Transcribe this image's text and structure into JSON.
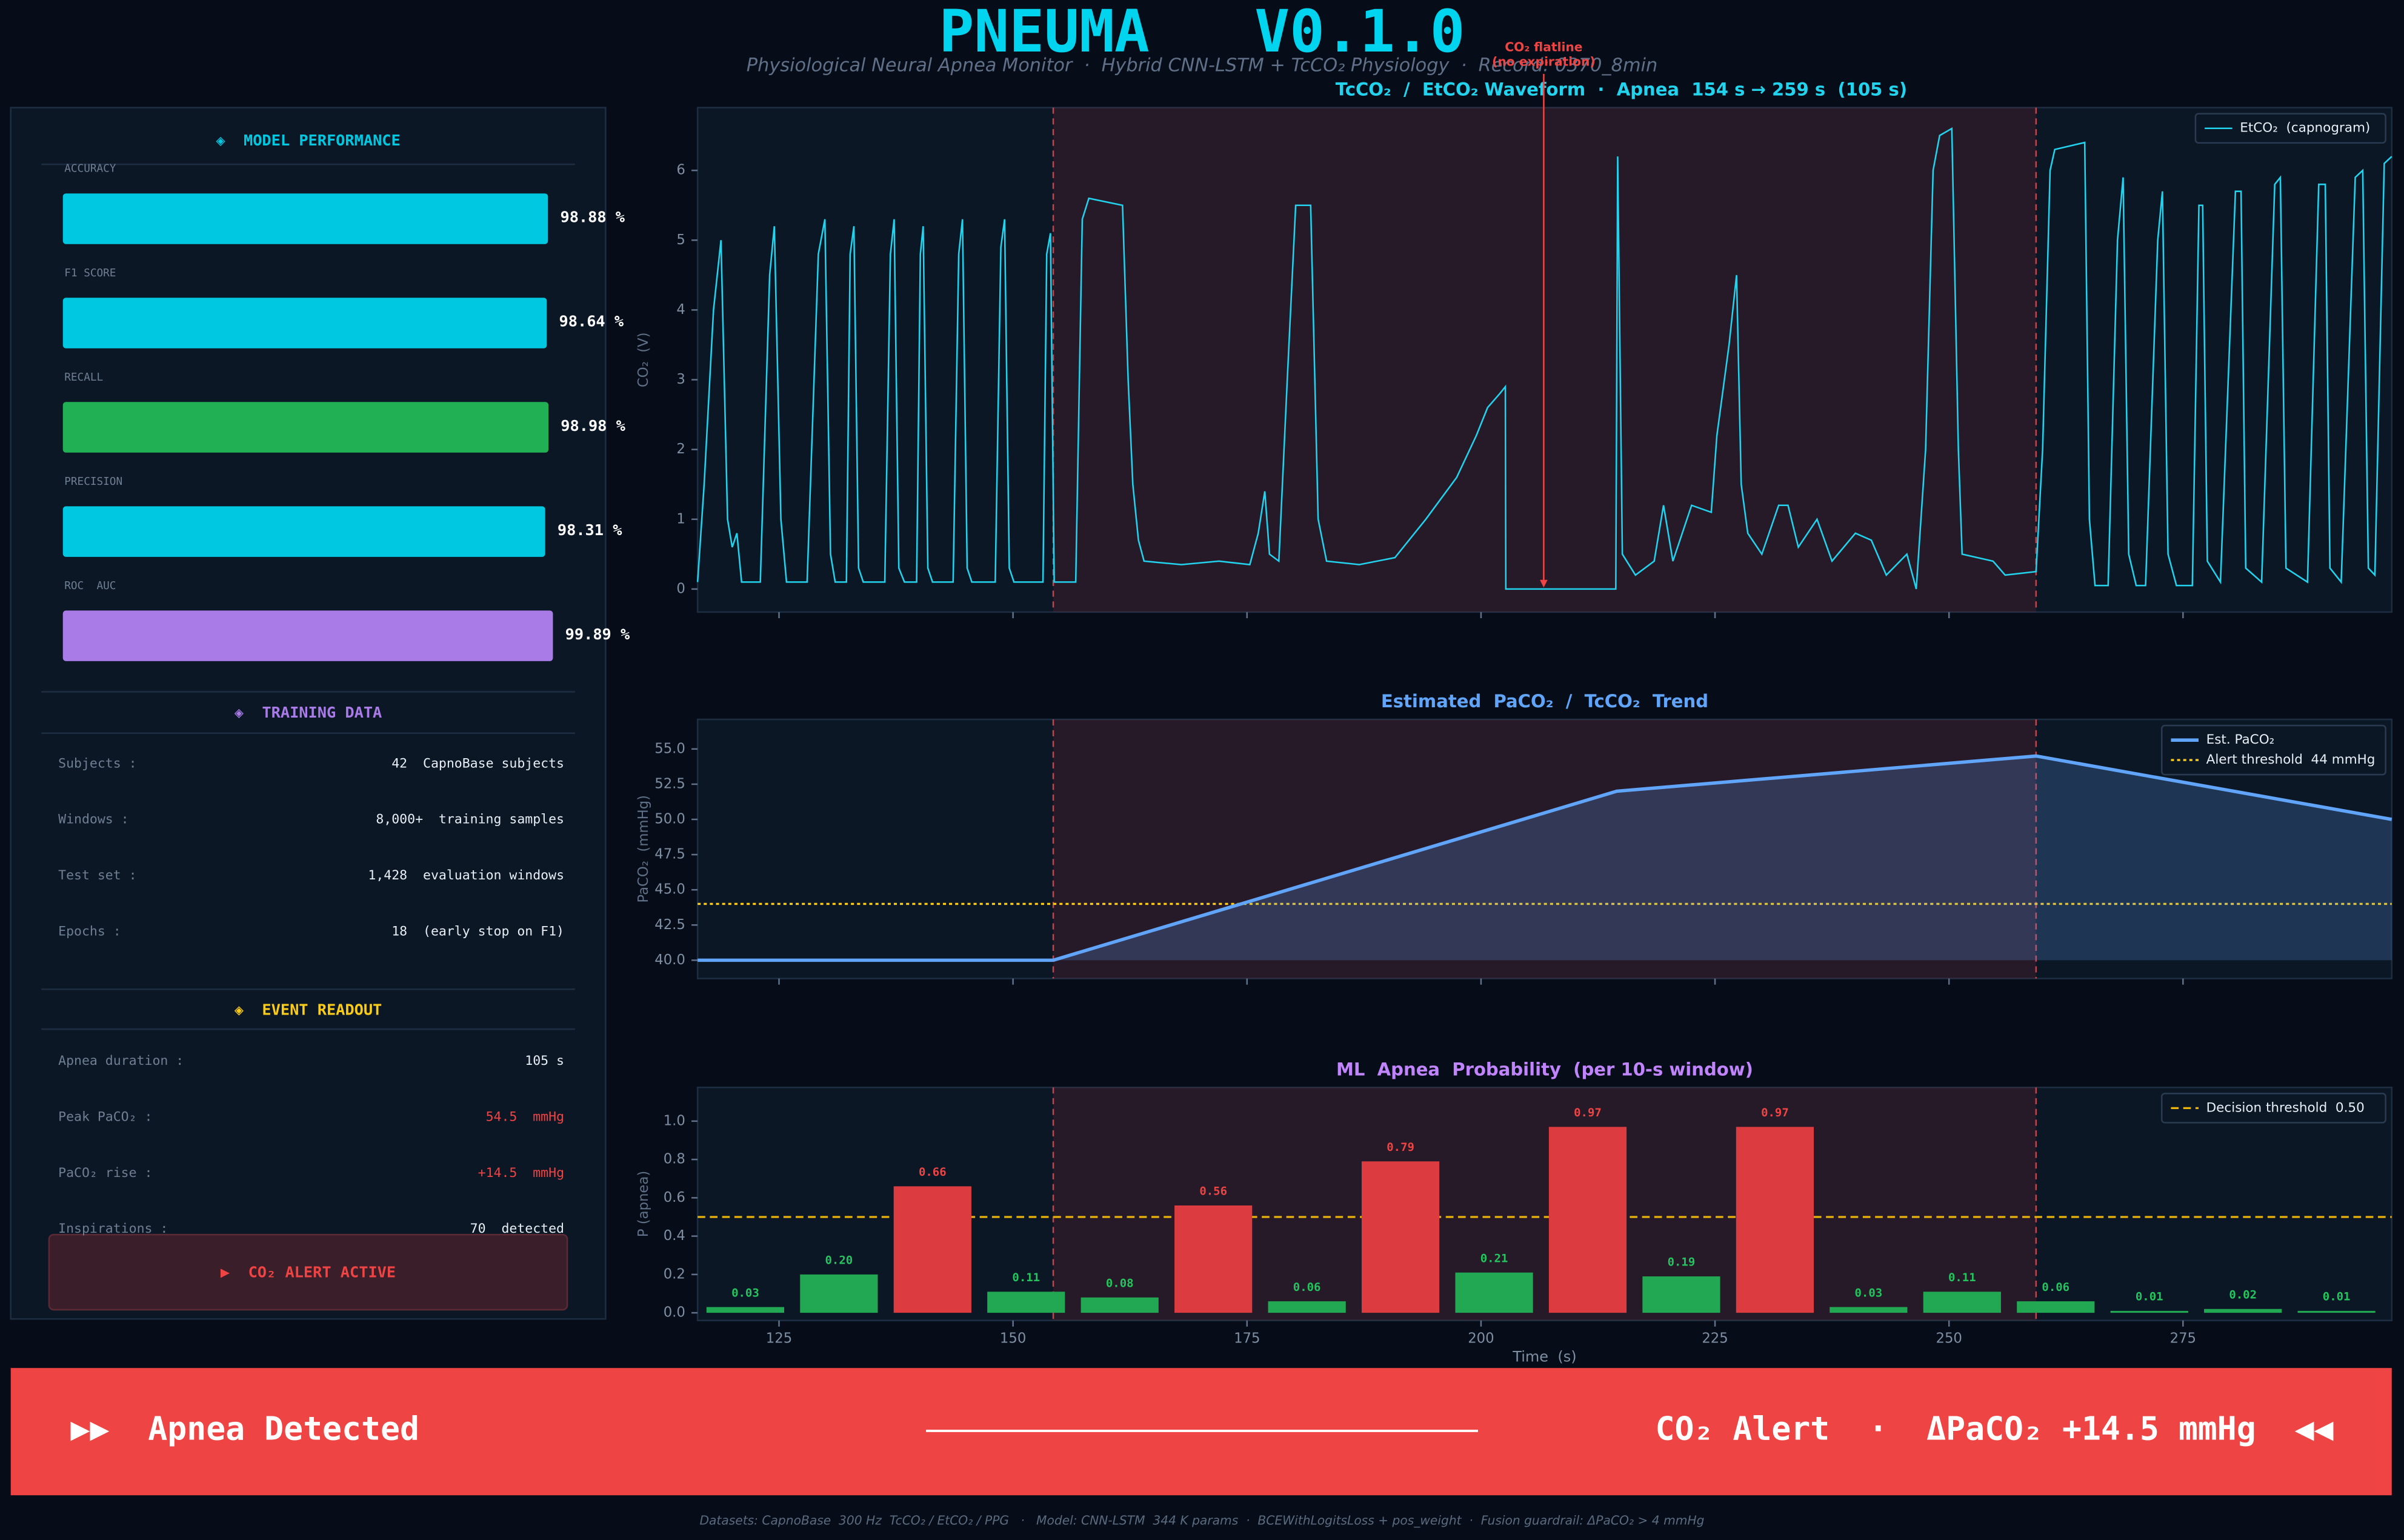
{
  "header": {
    "title": "PNEUMA   V0.1.0",
    "subtitle": "Physiological Neural Apnea Monitor  ·  Hybrid CNN-LSTM + TcCO₂ Physiology  ·  Record: 0370_8min"
  },
  "performance": {
    "title": "◈  MODEL PERFORMANCE",
    "metrics": [
      {
        "label": "ACCURACY",
        "value": 98.88,
        "value_label": "98.88 %",
        "color": "#00c8e0"
      },
      {
        "label": "F1 SCORE",
        "value": 98.64,
        "value_label": "98.64 %",
        "color": "#00c8e0"
      },
      {
        "label": "RECALL",
        "value": 98.98,
        "value_label": "98.98 %",
        "color": "#22b055"
      },
      {
        "label": "PRECISION",
        "value": 98.31,
        "value_label": "98.31 %",
        "color": "#00c8e0"
      },
      {
        "label": "ROC  AUC",
        "value": 99.89,
        "value_label": "99.89 %",
        "color": "#a87be6"
      }
    ]
  },
  "training": {
    "title": "◈  TRAINING DATA",
    "rows": [
      {
        "label": "Subjects :",
        "value": "42  CapnoBase subjects"
      },
      {
        "label": "Windows :",
        "value": "8,000+  training samples"
      },
      {
        "label": "Test set :",
        "value": "1,428  evaluation windows"
      },
      {
        "label": "Epochs :",
        "value": "18  (early stop on F1)"
      }
    ]
  },
  "event": {
    "title": "◈  EVENT READOUT",
    "rows": [
      {
        "label": "Apnea duration :",
        "value": "105 s",
        "color": "#e8eef5"
      },
      {
        "label": "Peak PaCO₂ :",
        "value": "54.5  mmHg",
        "color": "#ef4444"
      },
      {
        "label": "PaCO₂ rise :",
        "value": "+14.5  mmHg",
        "color": "#ef4444"
      },
      {
        "label": "Inspirations :",
        "value": "70  detected",
        "color": "#e8eef5"
      }
    ]
  },
  "alert": "▶  CO₂ ALERT ACTIVE",
  "banner": {
    "left": "▶▶  Apnea Detected",
    "right": "CO₂ Alert  ·  ΔPaCO₂ +14.5 mmHg  ◀◀"
  },
  "footer": "Datasets: CapnoBase  300 Hz  TcCO₂ / EtCO₂ / PPG   ·   Model: CNN-LSTM  344 K params  ·  BCEWithLogitsLoss + pos_weight  ·  Fusion guardrail: ΔPaCO₂ > 4 mmHg",
  "chart_data": [
    {
      "type": "line",
      "title": "TcCO₂  /  EtCO₂ Waveform  ·  Apnea  154 s → 259 s  (105 s)",
      "title_color": "#22d3ee",
      "ylabel": "CO₂  (V)",
      "x": [
        116.3,
        117,
        118,
        118.8,
        119.5,
        120,
        120.5,
        121,
        123,
        124,
        124.5,
        125.2,
        125.8,
        128,
        129.2,
        129.9,
        130.5,
        131,
        132.2,
        132.6,
        133,
        133.5,
        134,
        136.3,
        136.9,
        137.3,
        137.8,
        138.4,
        139.7,
        140.1,
        140.4,
        140.9,
        141.4,
        143.6,
        144.2,
        144.6,
        145.1,
        145.6,
        148.1,
        148.7,
        149.1,
        149.6,
        150.1,
        153.2,
        153.6,
        154,
        154.4,
        156.7,
        157.4,
        158.1,
        161.7,
        162.3,
        162.8,
        163.4,
        164,
        168,
        172,
        175.3,
        176.2,
        176.9,
        177.4,
        178.4,
        179.3,
        180.2,
        181.8,
        182.6,
        183.5,
        187,
        190.8,
        194.1,
        197.4,
        199.5,
        200.7,
        202,
        202.6,
        202.65,
        214.4,
        214.6,
        215.1,
        216.5,
        218.5,
        219.5,
        220.5,
        222.5,
        224.6,
        225.2,
        226.5,
        227.3,
        227.8,
        228.5,
        230,
        231.8,
        232.8,
        233.9,
        235.9,
        237.5,
        240,
        241.7,
        243.3,
        245.5,
        246.5,
        247.5,
        248.3,
        249,
        250.3,
        251,
        251.4,
        254.7,
        256,
        259.3,
        260,
        260.8,
        261.3,
        264.5,
        265,
        265.6,
        267,
        268,
        268.6,
        269.2,
        270,
        271,
        272.3,
        272.8,
        273.4,
        274.3,
        276,
        276.7,
        277.1,
        277.6,
        279,
        280.6,
        281.2,
        281.7,
        283.4,
        284.8,
        285.4,
        286,
        288.3,
        289.5,
        290.2,
        290.7,
        291.9,
        293.4,
        294.2,
        294.8,
        295.5,
        296.5,
        297.3
      ],
      "series": [
        {
          "name": "EtCO₂  (capnogram)",
          "color": "#22d3ee",
          "values": [
            0.1,
            1.5,
            4,
            5,
            1,
            0.6,
            0.8,
            0.1,
            0.1,
            4.5,
            5.2,
            1,
            0.1,
            0.1,
            4.8,
            5.3,
            0.5,
            0.1,
            0.1,
            4.8,
            5.2,
            0.3,
            0.1,
            0.1,
            4.8,
            5.3,
            0.3,
            0.1,
            0.1,
            4.8,
            5.2,
            0.3,
            0.1,
            0.1,
            4.8,
            5.3,
            0.3,
            0.1,
            0.1,
            4.9,
            5.3,
            0.3,
            0.1,
            0.1,
            4.8,
            5.1,
            0.1,
            0.1,
            5.3,
            5.6,
            5.5,
            3,
            1.5,
            0.7,
            0.4,
            0.35,
            0.4,
            0.35,
            0.8,
            1.4,
            0.5,
            0.4,
            3,
            5.5,
            5.5,
            1,
            0.4,
            0.35,
            0.45,
            1,
            1.6,
            2.2,
            2.6,
            2.8,
            2.9,
            0,
            0,
            6.2,
            0.5,
            0.2,
            0.4,
            1.2,
            0.4,
            1.2,
            1.1,
            2.2,
            3.5,
            4.5,
            1.5,
            0.8,
            0.5,
            1.2,
            1.2,
            0.6,
            1,
            0.4,
            0.8,
            0.7,
            0.2,
            0.5,
            0,
            2,
            6,
            6.5,
            6.6,
            2,
            0.5,
            0.4,
            0.2,
            0.25,
            2,
            6,
            6.3,
            6.4,
            1,
            0.05,
            0.05,
            5,
            5.9,
            0.5,
            0.05,
            0.05,
            5,
            5.7,
            0.5,
            0.05,
            0.05,
            5.5,
            5.5,
            0.4,
            0.1,
            5.7,
            5.7,
            0.3,
            0.1,
            5.8,
            5.9,
            0.3,
            0.1,
            5.8,
            5.8,
            0.3,
            0.1,
            5.9,
            6,
            0.3,
            0.2,
            6.1,
            6.2
          ]
        }
      ],
      "xlim": [
        116.3,
        297.3
      ],
      "ylim": [
        -0.33,
        6.9
      ],
      "xticks": [
        125,
        150,
        175,
        200,
        225,
        250,
        275
      ],
      "yticks": [
        0,
        1,
        2,
        3,
        4,
        5,
        6
      ],
      "highlight": [
        154.3,
        259.3
      ],
      "legend": "upper right",
      "annotations": [
        {
          "text": [
            "CO₂ flatline",
            "(no expiration)"
          ],
          "x": 206.7,
          "y": 0,
          "color": "#ef4444"
        }
      ]
    },
    {
      "type": "line",
      "title": "Estimated  PaCO₂  /  TcCO₂  Trend",
      "title_color": "#60a5fa",
      "ylabel": "PaCO₂  (mmHg)",
      "x": [
        116.3,
        154.3,
        214.5,
        259.3,
        297.3
      ],
      "series": [
        {
          "name": "Est. PaCO₂",
          "color": "#60a5fa",
          "values": [
            40,
            40,
            52,
            54.5,
            50
          ]
        }
      ],
      "fill": true,
      "threshold": {
        "name": "Alert threshold  44 mmHg",
        "value": 44,
        "color": "#facc15",
        "dash": "2 2"
      },
      "xlim": [
        116.3,
        297.3
      ],
      "ylim": [
        38.7,
        57.1
      ],
      "xticks": [
        125,
        150,
        175,
        200,
        225,
        250,
        275
      ],
      "yticks": [
        {
          "value": 40,
          "label": "40.0"
        },
        {
          "value": 42.5,
          "label": "42.5"
        },
        {
          "value": 45,
          "label": "45.0"
        },
        {
          "value": 47.5,
          "label": "47.5"
        },
        {
          "value": 50,
          "label": "50.0"
        },
        {
          "value": 52.5,
          "label": "52.5"
        },
        {
          "value": 55,
          "label": "55.0"
        }
      ],
      "highlight": [
        154.3,
        259.3
      ],
      "legend": "upper right"
    },
    {
      "type": "bar",
      "title": "ML  Apnea  Probability  (per 10-s window)",
      "title_color": "#c084fc",
      "xlabel": "Time  (s)",
      "ylabel": "P (apnea)",
      "x": [
        121.4,
        131.4,
        141.4,
        151.4,
        161.4,
        171.4,
        181.4,
        191.4,
        201.4,
        211.4,
        221.4,
        231.4,
        241.4,
        251.4,
        261.4,
        271.4,
        281.4,
        291.4
      ],
      "values": [
        0.03,
        0.2,
        0.66,
        0.11,
        0.08,
        0.56,
        0.06,
        0.79,
        0.21,
        0.97,
        0.19,
        0.97,
        0.03,
        0.11,
        0.06,
        0.01,
        0.02,
        0.01
      ],
      "value_labels": [
        "0.03",
        "0.20",
        "0.66",
        "0.11",
        "0.08",
        "0.56",
        "0.06",
        "0.79",
        "0.21",
        "0.97",
        "0.19",
        "0.97",
        "0.03",
        "0.11",
        "0.06",
        "0.01",
        "0.02",
        "0.01"
      ],
      "color_above": "#dc3c40",
      "color_below": "#22a852",
      "threshold": {
        "name": "Decision threshold  0.50",
        "value": 0.5,
        "color": "#eab308",
        "dash": "5 3"
      },
      "xlim": [
        116.3,
        297.3
      ],
      "ylim": [
        -0.04,
        1.176
      ],
      "xticks": [
        125,
        150,
        175,
        200,
        225,
        250,
        275
      ],
      "yticks": [
        {
          "value": 0,
          "label": "0.0"
        },
        0.2,
        0.4,
        0.6,
        0.8,
        {
          "value": 1,
          "label": "1.0"
        }
      ],
      "highlight": [
        154.3,
        259.3
      ],
      "legend": "upper right"
    }
  ]
}
